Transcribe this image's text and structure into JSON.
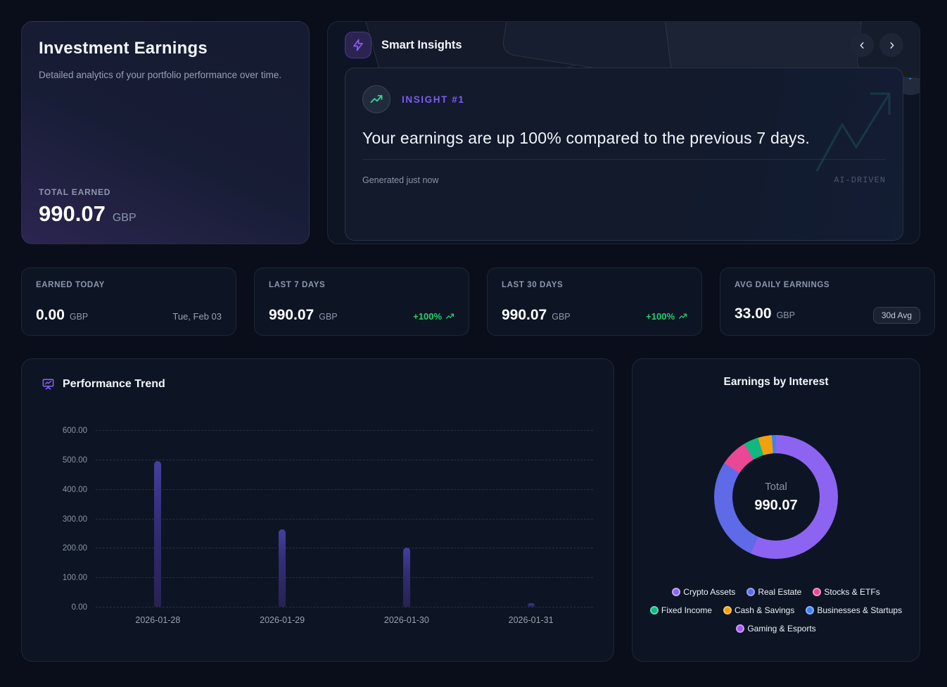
{
  "theme": {
    "page_bg": "#0a0e1b",
    "card_bg": "#0d1524",
    "accent_purple": "#7c5cf0",
    "positive_green": "#24d16e",
    "bar_color_top": "#453f9e",
    "bar_color_bottom": "#272252"
  },
  "hero": {
    "title": "Investment Earnings",
    "subtitle": "Detailed analytics of your portfolio performance over time.",
    "total_label": "TOTAL EARNED",
    "total_value": "990.07",
    "currency": "GBP"
  },
  "insights": {
    "header_title": "Smart Insights",
    "badge_label": "INSIGHT #1",
    "headline": "Your earnings are up 100% compared to the previous 7 days.",
    "generated": "Generated just now",
    "watermark": "AI-DRIVEN"
  },
  "stats": [
    {
      "label": "EARNED TODAY",
      "value": "0.00",
      "currency": "GBP",
      "meta": "Tue, Feb 03",
      "meta_type": "date"
    },
    {
      "label": "LAST 7 DAYS",
      "value": "990.07",
      "currency": "GBP",
      "meta": "+100%",
      "meta_type": "delta"
    },
    {
      "label": "LAST 30 DAYS",
      "value": "990.07",
      "currency": "GBP",
      "meta": "+100%",
      "meta_type": "delta"
    },
    {
      "label": "AVG DAILY EARNINGS",
      "value": "33.00",
      "currency": "GBP",
      "meta": "30d Avg",
      "meta_type": "badge"
    }
  ],
  "chart_data": [
    {
      "type": "bar",
      "title": "Performance Trend",
      "categories": [
        "2026-01-28",
        "2026-01-29",
        "2026-01-30",
        "2026-01-31"
      ],
      "values": [
        495,
        262,
        202,
        12
      ],
      "ylim": [
        0,
        600
      ],
      "yticks": [
        "600.00",
        "500.00",
        "400.00",
        "300.00",
        "200.00",
        "100.00",
        "0.00"
      ],
      "grid": "dashed horizontal",
      "xlabel": "",
      "ylabel": ""
    },
    {
      "type": "pie",
      "subtype": "donut",
      "title": "Earnings by Interest",
      "center_label": "Total",
      "center_value": "990.07",
      "legend_position": "bottom",
      "segments": [
        {
          "label": "Crypto Assets",
          "share_pct": 56.7,
          "value_est": 561.4,
          "color": "#8d64f2",
          "border": "#c0a8f8"
        },
        {
          "label": "Real Estate",
          "share_pct": 27.5,
          "value_est": 272.3,
          "color": "#5e6ae8",
          "border": "#98a0f2"
        },
        {
          "label": "Stocks & ETFs",
          "share_pct": 7.2,
          "value_est": 71.3,
          "color": "#ea4895",
          "border": "#f291c2"
        },
        {
          "label": "Fixed Income",
          "share_pct": 3.9,
          "value_est": 38.6,
          "color": "#10b981",
          "border": "#5fd8b0"
        },
        {
          "label": "Cash & Savings",
          "share_pct": 3.6,
          "value_est": 35.6,
          "color": "#f2a00c",
          "border": "#f8c468"
        },
        {
          "label": "Businesses & Startups",
          "share_pct": 1.1,
          "value_est": 10.9,
          "color": "#3b82f6",
          "border": "#85b3fa"
        },
        {
          "label": "Gaming & Esports",
          "share_pct": 0.0,
          "value_est": 0.0,
          "color": "#a557f0",
          "border": "#cf9ef7"
        }
      ]
    }
  ]
}
